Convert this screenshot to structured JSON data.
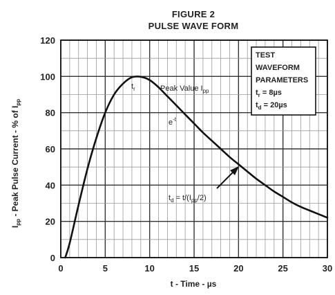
{
  "figure": {
    "label": "FIGURE 2",
    "title": "PULSE WAVE FORM"
  },
  "chart_data": {
    "type": "line",
    "xlabel": "t - Time - µs",
    "ylabel": "I_pp - Peak Pulse Current - % of I_pp",
    "xlim": [
      0,
      30
    ],
    "ylim": [
      0,
      120
    ],
    "xticks": [
      0,
      5,
      10,
      15,
      20,
      25,
      30
    ],
    "yticks": [
      0,
      20,
      40,
      60,
      80,
      100,
      120
    ],
    "grid": true,
    "series": [
      {
        "x": [
          0.5,
          1,
          2,
          3,
          4,
          5,
          6,
          7,
          8,
          9,
          10,
          11,
          12,
          13,
          14,
          15,
          16,
          17,
          18,
          19,
          20,
          21,
          22,
          23,
          24,
          25,
          26,
          27,
          28,
          29,
          30
        ],
        "y": [
          0,
          8,
          29,
          49,
          66,
          80,
          90,
          96,
          99.5,
          99.8,
          98,
          94,
          89,
          84,
          79,
          74,
          69,
          64.5,
          60,
          55.5,
          51.5,
          47.5,
          43.5,
          40,
          36.5,
          33.5,
          30.5,
          28,
          26,
          24,
          22
        ],
        "color": "#111111"
      }
    ],
    "annotations": {
      "tr_label": "t",
      "tr_sub": "r",
      "peak_main": "Peak Value I",
      "peak_sub": "pp",
      "exp_main": "e",
      "exp_sup": "-t",
      "td_main": "t",
      "td_sub": "d",
      "td_formula_1": " = t/(I",
      "td_formula_sub": "pp",
      "td_formula_2": "/2)"
    },
    "param_box": {
      "line1": "TEST",
      "line2": "WAVEFORM",
      "line3": "PARAMETERS",
      "tr_name": "t",
      "tr_sub": "r",
      "tr_value": " = 8µs",
      "td_name": "t",
      "td_sub": "d",
      "td_value": " = 20µs"
    },
    "ylabel_parts": {
      "i": "I",
      "i_sub": "pp",
      "mid": " - Peak Pulse Current - % of I",
      "end_sub": "pp"
    }
  }
}
